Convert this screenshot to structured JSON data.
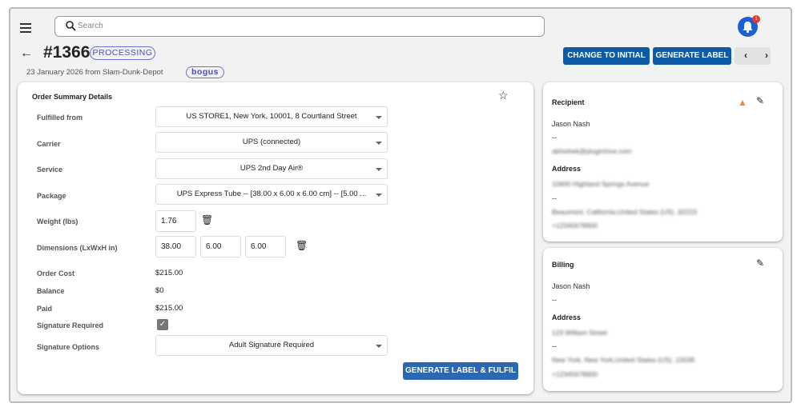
{
  "header": {
    "search_placeholder": "Search",
    "notification_count": "1"
  },
  "order": {
    "number": "#1366",
    "status": "PROCESSING",
    "subtitle": "23 January 2026 from Slam-Dunk-Depot",
    "tag": "bogus"
  },
  "actions": {
    "change_to_initial": "CHANGE TO INITIAL",
    "generate_label": "GENERATE LABEL",
    "prev": "‹",
    "next": "›"
  },
  "summary": {
    "title": "Order Summary Details",
    "fulfilled_from_label": "Fulfilled from",
    "fulfilled_from": "US STORE1, New York, 10001, 8 Courtland Street",
    "carrier_label": "Carrier",
    "carrier": "UPS (connected)",
    "service_label": "Service",
    "service": "UPS 2nd Day Air®",
    "package_label": "Package",
    "package": "UPS Express Tube -- [38.00 x 6.00 x 6.00 cm] -- [5.00 ...",
    "weight_label": "Weight  (lbs)",
    "weight": "1.76",
    "dimensions_label": "Dimensions (LxWxH in)",
    "length": "38.00",
    "width": "6.00",
    "height": "6.00",
    "order_cost_label": "Order Cost",
    "order_cost": "$215.00",
    "balance_label": "Balance",
    "balance": "$0",
    "paid_label": "Paid",
    "paid": "$215.00",
    "signature_required_label": "Signature Required",
    "signature_required": true,
    "signature_options_label": "Signature Options",
    "signature_options": "Adult Signature Required",
    "submit": "GENERATE LABEL & FULFIL"
  },
  "recipient": {
    "title": "Recipient",
    "name": "Jason Nash",
    "line2": "--",
    "email": "abhishek@pluginhive.com",
    "address_label": "Address",
    "address1": "10600 Highland Springs Avenue",
    "address2": "--",
    "city": "Beaumont, California,United States (US) ,92223",
    "phone": "+12345678900"
  },
  "billing": {
    "title": "Billing",
    "name": "Jason Nash",
    "line2": "--",
    "address_label": "Address",
    "address1": "123 William Street",
    "address2": "--",
    "city": "New York, New York,United States (US) ,10038",
    "phone": "+12345678900"
  },
  "colors": {
    "primary": "#0d5aa7",
    "warning": "#f08a3a",
    "bell": "#1a5fd6"
  }
}
